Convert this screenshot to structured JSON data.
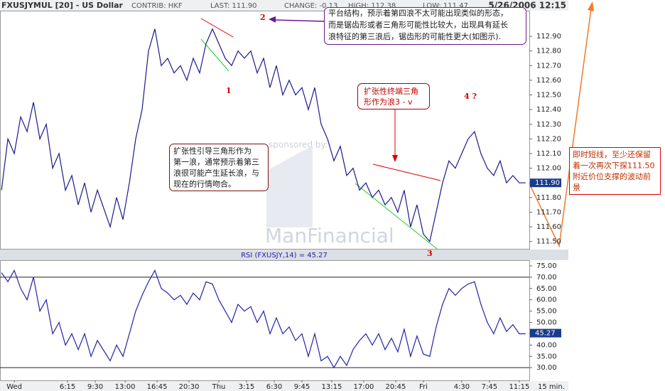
{
  "header": {
    "symbol": "FXUSJYMUL [20] - US Dollar",
    "contrib": "CONTRIB: HKF",
    "last": "LAST: 111.90",
    "change": "CHANGE: -0.13",
    "high": "HIGH: 112.38",
    "low": "LOW: 111.47",
    "date": "5/26/2006 12:15"
  },
  "watermark": {
    "sponsor": "sponsored by:",
    "brand": "ManFinancial"
  },
  "annotations": [
    {
      "lines": [
        "平台结构，预示着第四浪不太可能出现类似的形态，",
        "而是锯齿形或者三角形可能性比较大，出现具有延长",
        "浪特征的第三浪后，锯齿形的可能性更大(如图示)."
      ]
    },
    {
      "lines": [
        "扩张性终端三角",
        "形作为浪3 - v"
      ]
    },
    {
      "lines": [
        "扩张性引导三角形作为",
        "第一浪，通常预示着第三",
        "浪很可能产生延长浪，与",
        "现在的行情吻合。"
      ]
    },
    {
      "lines": [
        "即时短线，至少还保留",
        "着一次再次下探111.50",
        "附近价位支撑的波动前",
        "景"
      ]
    }
  ],
  "waves": [
    "1",
    "2",
    "3",
    "4 ?"
  ],
  "chart_data": [
    {
      "type": "line",
      "color": "#1a1a8c",
      "x": [
        -6,
        -3,
        0,
        3,
        6,
        9,
        12,
        15,
        18,
        21,
        24,
        27,
        30,
        33,
        36,
        39,
        45,
        48,
        51,
        54,
        57,
        60,
        63,
        66,
        69,
        72,
        75,
        78,
        81,
        84,
        87,
        90,
        93,
        96,
        99,
        102,
        105,
        108,
        111,
        114,
        117,
        120,
        123,
        126,
        129,
        132,
        135,
        138,
        141,
        144,
        147,
        150,
        153,
        156,
        159,
        162,
        165,
        168,
        171,
        174,
        177,
        180,
        183,
        186,
        189,
        192,
        195,
        198,
        201,
        204,
        207,
        210,
        213,
        216,
        219,
        222,
        225,
        228,
        231,
        234,
        237,
        240
      ],
      "values": [
        111.85,
        112.2,
        112.1,
        112.35,
        112.25,
        112.45,
        112.2,
        112.3,
        112.0,
        112.1,
        111.85,
        111.95,
        111.75,
        111.9,
        111.7,
        111.85,
        111.6,
        111.8,
        111.65,
        111.9,
        112.2,
        112.4,
        112.8,
        112.95,
        112.7,
        112.75,
        112.65,
        112.7,
        112.6,
        112.75,
        112.65,
        112.85,
        112.95,
        112.85,
        112.75,
        112.7,
        112.8,
        112.75,
        112.8,
        112.65,
        112.75,
        112.55,
        112.7,
        112.5,
        112.6,
        112.5,
        112.55,
        112.4,
        112.55,
        112.3,
        112.2,
        112.05,
        112.15,
        111.95,
        112.0,
        111.85,
        111.9,
        111.8,
        111.85,
        111.75,
        111.8,
        111.7,
        111.85,
        111.6,
        111.75,
        111.55,
        111.5,
        111.7,
        111.9,
        112.05,
        112.0,
        112.1,
        112.2,
        112.25,
        112.1,
        112.0,
        111.95,
        112.05,
        111.9,
        111.95,
        111.9,
        111.9
      ],
      "xlim": [
        -6.7,
        241.7
      ],
      "ylim": [
        111.45,
        113.07
      ],
      "yticks": [
        {
          "value": 111.5,
          "label": "111.50"
        },
        {
          "value": 111.6,
          "label": "111.60"
        },
        {
          "value": 111.7,
          "label": "111.70"
        },
        {
          "value": 111.8,
          "label": "111.80"
        },
        {
          "value": 111.9,
          "label": "111.90"
        },
        {
          "value": 112.0,
          "label": "112.00"
        },
        {
          "value": 112.1,
          "label": "112.10"
        },
        {
          "value": 112.2,
          "label": "112.20"
        },
        {
          "value": 112.3,
          "label": "112.30"
        },
        {
          "value": 112.4,
          "label": "112.40"
        },
        {
          "value": 112.5,
          "label": "112.50"
        },
        {
          "value": 112.6,
          "label": "112.60"
        },
        {
          "value": 112.7,
          "label": "112.70"
        },
        {
          "value": 112.8,
          "label": "112.80"
        },
        {
          "value": 112.9,
          "label": "112.90"
        }
      ],
      "marker": {
        "value": 111.9,
        "label": "111.90"
      }
    },
    {
      "type": "line",
      "title": "RSI (FXUSJY,14) = 45.27",
      "color": "#2222aa",
      "x": [
        -6,
        -3,
        0,
        3,
        6,
        9,
        12,
        15,
        18,
        21,
        24,
        27,
        30,
        33,
        36,
        39,
        45,
        48,
        51,
        54,
        57,
        60,
        63,
        66,
        69,
        72,
        75,
        78,
        81,
        84,
        87,
        90,
        93,
        96,
        99,
        102,
        105,
        108,
        111,
        114,
        117,
        120,
        123,
        126,
        129,
        132,
        135,
        138,
        141,
        144,
        147,
        150,
        153,
        156,
        159,
        162,
        165,
        168,
        171,
        174,
        177,
        180,
        183,
        186,
        189,
        192,
        195,
        198,
        201,
        204,
        207,
        210,
        213,
        216,
        219,
        222,
        225,
        228,
        231,
        234,
        237,
        240
      ],
      "values": [
        72,
        68,
        73,
        65,
        60,
        70,
        55,
        60,
        45,
        50,
        40,
        45,
        38,
        45,
        35,
        42,
        33,
        40,
        35,
        45,
        55,
        62,
        68,
        73,
        65,
        63,
        60,
        62,
        58,
        63,
        60,
        68,
        67,
        60,
        55,
        50,
        58,
        55,
        57,
        50,
        55,
        45,
        52,
        45,
        48,
        42,
        45,
        35,
        45,
        33,
        35,
        30,
        35,
        31,
        38,
        42,
        45,
        40,
        45,
        38,
        43,
        37,
        47,
        35,
        44,
        36,
        35,
        48,
        58,
        65,
        62,
        65,
        67,
        68,
        58,
        50,
        45,
        52,
        46,
        49,
        45,
        45
      ],
      "xlim": [
        -6.7,
        241.7
      ],
      "ylim": [
        24.4,
        77.2
      ],
      "yticks": [
        {
          "value": 30,
          "label": "30.00"
        },
        {
          "value": 35,
          "label": "35.00"
        },
        {
          "value": 40,
          "label": "40.00"
        },
        {
          "value": 45,
          "label": "45.00"
        },
        {
          "value": 50,
          "label": "50.00"
        },
        {
          "value": 55,
          "label": "55.00"
        },
        {
          "value": 60,
          "label": "60.00"
        },
        {
          "value": 65,
          "label": "65.00"
        },
        {
          "value": 70,
          "label": "70.00"
        },
        {
          "value": 75,
          "label": "75.00"
        }
      ],
      "hlines": [
        70,
        30
      ],
      "marker": {
        "value": 45.27,
        "label": "45.27"
      },
      "xticks": [
        {
          "value": 0,
          "label": "Wed"
        },
        {
          "value": 25,
          "label": "6:15"
        },
        {
          "value": 38,
          "label": "9:30"
        },
        {
          "value": 52,
          "label": "13:00"
        },
        {
          "value": 67,
          "label": "16:45"
        },
        {
          "value": 82,
          "label": "20:30"
        },
        {
          "value": 96,
          "label": "Thu"
        },
        {
          "value": 109,
          "label": "3:15"
        },
        {
          "value": 122,
          "label": "6:30"
        },
        {
          "value": 135,
          "label": "9:45"
        },
        {
          "value": 149,
          "label": "13:15"
        },
        {
          "value": 164,
          "label": "17:00"
        },
        {
          "value": 179,
          "label": "20:45"
        },
        {
          "value": 192,
          "label": "Fri"
        },
        {
          "value": 210,
          "label": "4:30"
        },
        {
          "value": 223,
          "label": "7:45"
        },
        {
          "value": 237,
          "label": "11:15"
        }
      ],
      "interval_label": "15 min."
    }
  ]
}
